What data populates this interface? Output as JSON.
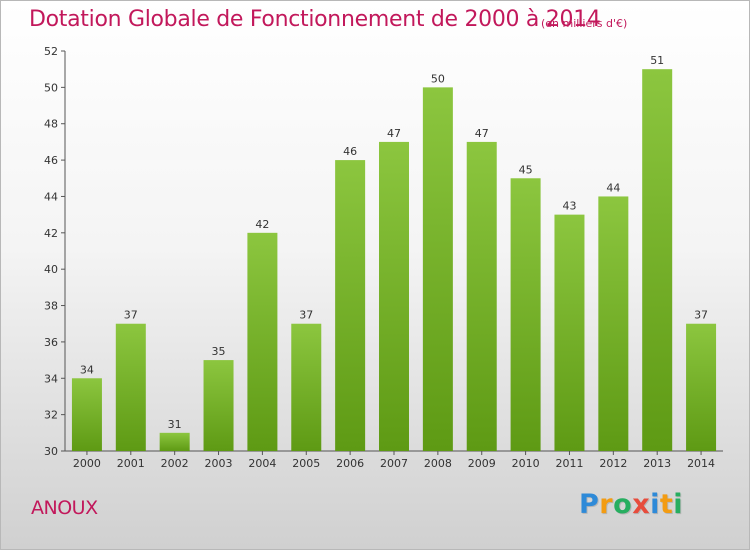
{
  "chart_data": {
    "type": "bar",
    "title": "Dotation Globale de Fonctionnement de 2000 à 2014",
    "subtitle": "(en milliers d'€)",
    "categories": [
      "2000",
      "2001",
      "2002",
      "2003",
      "2004",
      "2005",
      "2006",
      "2007",
      "2008",
      "2009",
      "2010",
      "2011",
      "2012",
      "2013",
      "2014"
    ],
    "values": [
      34,
      37,
      31,
      35,
      42,
      37,
      46,
      47,
      50,
      47,
      45,
      43,
      44,
      51,
      37
    ],
    "xlabel": "",
    "ylabel": "",
    "ylim": [
      30,
      52
    ],
    "yticks": [
      30,
      32,
      34,
      36,
      38,
      40,
      42,
      44,
      46,
      48,
      50,
      52
    ],
    "grid": false,
    "legend": "none",
    "bar_color": "#8cc63f",
    "bar_color_dark": "#5e9a14"
  },
  "commune": "ANOUX",
  "logo": {
    "letters": [
      "P",
      "r",
      "o",
      "x",
      "i",
      "t",
      "i"
    ],
    "colors": [
      "#2e8ad8",
      "#f39c12",
      "#27ae60",
      "#e74c3c",
      "#2e8ad8",
      "#f39c12",
      "#27ae60"
    ]
  }
}
